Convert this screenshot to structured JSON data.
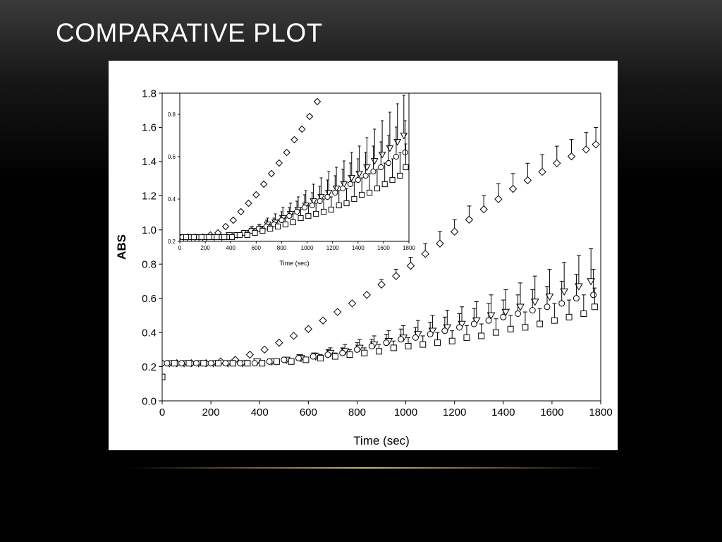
{
  "slide": {
    "title": "COMPARATIVE PLOT",
    "accent_color": "#d4b46a",
    "background": "#000000"
  },
  "chart_data": [
    {
      "type": "scatter",
      "title": "",
      "xlabel": "Time (sec)",
      "ylabel": "ABS",
      "xlim": [
        0,
        1800
      ],
      "ylim": [
        0,
        1.8
      ],
      "x_ticks": [
        "0",
        "200",
        "400",
        "600",
        "800",
        "1000",
        "1200",
        "1400",
        "1600",
        "1800"
      ],
      "y_ticks": [
        "0.0",
        "0.2",
        "0.4",
        "0.6",
        "0.8",
        "1.0",
        "1.2",
        "1.4",
        "1.6",
        "1.8"
      ],
      "grid": false,
      "series": [
        {
          "marker": "diamond",
          "x": [
            0,
            60,
            120,
            180,
            240,
            300,
            360,
            420,
            480,
            540,
            600,
            660,
            720,
            780,
            840,
            900,
            960,
            1020,
            1080,
            1140,
            1200,
            1260,
            1320,
            1380,
            1440,
            1500,
            1560,
            1620,
            1680,
            1740,
            1780
          ],
          "y": [
            0.22,
            0.22,
            0.22,
            0.22,
            0.23,
            0.24,
            0.27,
            0.3,
            0.34,
            0.38,
            0.42,
            0.47,
            0.52,
            0.57,
            0.62,
            0.68,
            0.73,
            0.79,
            0.86,
            0.92,
            0.99,
            1.06,
            1.12,
            1.18,
            1.24,
            1.29,
            1.34,
            1.39,
            1.43,
            1.47,
            1.5
          ],
          "err": [
            0,
            0,
            0,
            0,
            0,
            0,
            0,
            0,
            0,
            0,
            0,
            0,
            0,
            0,
            0,
            0.03,
            0.04,
            0.05,
            0.06,
            0.07,
            0.07,
            0.08,
            0.08,
            0.09,
            0.09,
            0.1,
            0.1,
            0.1,
            0.1,
            0.1,
            0.1
          ]
        },
        {
          "marker": "triangle-down",
          "x": [
            30,
            90,
            150,
            210,
            270,
            330,
            390,
            450,
            510,
            570,
            630,
            690,
            750,
            810,
            870,
            930,
            990,
            1050,
            1110,
            1170,
            1230,
            1290,
            1350,
            1410,
            1470,
            1530,
            1590,
            1650,
            1710,
            1760
          ],
          "y": [
            0.22,
            0.22,
            0.22,
            0.22,
            0.22,
            0.22,
            0.23,
            0.23,
            0.24,
            0.25,
            0.26,
            0.28,
            0.29,
            0.31,
            0.33,
            0.35,
            0.37,
            0.39,
            0.41,
            0.43,
            0.45,
            0.47,
            0.5,
            0.52,
            0.55,
            0.58,
            0.61,
            0.64,
            0.67,
            0.7
          ],
          "err": [
            0,
            0,
            0,
            0,
            0,
            0,
            0,
            0.01,
            0.01,
            0.02,
            0.02,
            0.03,
            0.04,
            0.05,
            0.05,
            0.06,
            0.07,
            0.08,
            0.09,
            0.1,
            0.1,
            0.11,
            0.12,
            0.13,
            0.14,
            0.15,
            0.16,
            0.17,
            0.18,
            0.19
          ]
        },
        {
          "marker": "circle",
          "x": [
            20,
            80,
            140,
            200,
            260,
            320,
            380,
            440,
            500,
            560,
            620,
            680,
            740,
            800,
            860,
            920,
            980,
            1040,
            1100,
            1160,
            1220,
            1280,
            1340,
            1400,
            1460,
            1520,
            1580,
            1640,
            1700,
            1770
          ],
          "y": [
            0.22,
            0.22,
            0.22,
            0.22,
            0.22,
            0.22,
            0.22,
            0.23,
            0.24,
            0.25,
            0.26,
            0.27,
            0.28,
            0.3,
            0.32,
            0.34,
            0.36,
            0.37,
            0.39,
            0.41,
            0.43,
            0.45,
            0.47,
            0.49,
            0.51,
            0.53,
            0.55,
            0.57,
            0.6,
            0.62
          ],
          "err": [
            0,
            0,
            0,
            0,
            0,
            0,
            0,
            0.01,
            0.01,
            0.02,
            0.02,
            0.03,
            0.03,
            0.04,
            0.04,
            0.05,
            0.06,
            0.06,
            0.07,
            0.08,
            0.08,
            0.09,
            0.1,
            0.1,
            0.11,
            0.12,
            0.12,
            0.13,
            0.14,
            0.15
          ]
        },
        {
          "marker": "square",
          "x": [
            0,
            50,
            110,
            170,
            230,
            290,
            350,
            410,
            470,
            530,
            590,
            650,
            710,
            770,
            830,
            890,
            950,
            1010,
            1070,
            1130,
            1190,
            1250,
            1310,
            1370,
            1430,
            1490,
            1550,
            1610,
            1670,
            1730,
            1775
          ],
          "y": [
            0.14,
            0.22,
            0.22,
            0.22,
            0.22,
            0.22,
            0.22,
            0.22,
            0.23,
            0.23,
            0.24,
            0.25,
            0.26,
            0.27,
            0.28,
            0.29,
            0.31,
            0.32,
            0.33,
            0.34,
            0.35,
            0.37,
            0.38,
            0.4,
            0.42,
            0.43,
            0.45,
            0.47,
            0.49,
            0.51,
            0.55
          ],
          "err": [
            0,
            0,
            0,
            0,
            0,
            0,
            0,
            0,
            0.01,
            0.01,
            0.01,
            0.02,
            0.02,
            0.03,
            0.03,
            0.04,
            0.04,
            0.05,
            0.05,
            0.06,
            0.06,
            0.07,
            0.07,
            0.08,
            0.08,
            0.09,
            0.09,
            0.1,
            0.1,
            0.11,
            0.11
          ]
        }
      ]
    },
    {
      "type": "scatter",
      "title": "",
      "xlabel": "Time (sec)",
      "ylabel": "",
      "xlim": [
        0,
        1800
      ],
      "ylim": [
        0.2,
        0.9
      ],
      "x_ticks": [
        "0",
        "200",
        "400",
        "600",
        "800",
        "1000",
        "1200",
        "1400",
        "1600",
        "1800"
      ],
      "y_ticks": [
        "0.2",
        "0.4",
        "0.6",
        "0.8"
      ],
      "grid": false,
      "series": [
        {
          "marker": "diamond",
          "x": [
            0,
            60,
            120,
            180,
            240,
            300,
            360,
            420,
            480,
            540,
            600,
            660,
            720,
            780,
            840,
            900,
            960,
            1020,
            1080
          ],
          "y": [
            0.22,
            0.22,
            0.22,
            0.22,
            0.23,
            0.24,
            0.27,
            0.3,
            0.34,
            0.38,
            0.42,
            0.47,
            0.52,
            0.57,
            0.62,
            0.68,
            0.73,
            0.79,
            0.86
          ],
          "err": [
            0,
            0,
            0,
            0,
            0,
            0,
            0,
            0,
            0,
            0,
            0,
            0,
            0,
            0,
            0,
            0,
            0,
            0,
            0
          ]
        },
        {
          "marker": "triangle-down",
          "x": [
            30,
            90,
            150,
            210,
            270,
            330,
            390,
            450,
            510,
            570,
            630,
            690,
            750,
            810,
            870,
            930,
            990,
            1050,
            1110,
            1170,
            1230,
            1290,
            1350,
            1410,
            1470,
            1530,
            1590,
            1650,
            1710,
            1760
          ],
          "y": [
            0.22,
            0.22,
            0.22,
            0.22,
            0.22,
            0.22,
            0.23,
            0.23,
            0.24,
            0.25,
            0.26,
            0.28,
            0.29,
            0.31,
            0.33,
            0.35,
            0.37,
            0.39,
            0.41,
            0.43,
            0.45,
            0.47,
            0.5,
            0.52,
            0.55,
            0.58,
            0.61,
            0.64,
            0.67,
            0.7
          ],
          "err": [
            0,
            0,
            0,
            0,
            0,
            0,
            0,
            0.01,
            0.01,
            0.02,
            0.02,
            0.03,
            0.04,
            0.05,
            0.05,
            0.06,
            0.07,
            0.08,
            0.09,
            0.1,
            0.1,
            0.11,
            0.12,
            0.13,
            0.14,
            0.15,
            0.16,
            0.17,
            0.18,
            0.19
          ]
        },
        {
          "marker": "circle",
          "x": [
            20,
            80,
            140,
            200,
            260,
            320,
            380,
            440,
            500,
            560,
            620,
            680,
            740,
            800,
            860,
            920,
            980,
            1040,
            1100,
            1160,
            1220,
            1280,
            1340,
            1400,
            1460,
            1520,
            1580,
            1640,
            1700,
            1770
          ],
          "y": [
            0.22,
            0.22,
            0.22,
            0.22,
            0.22,
            0.22,
            0.22,
            0.23,
            0.24,
            0.25,
            0.26,
            0.27,
            0.28,
            0.3,
            0.32,
            0.34,
            0.36,
            0.37,
            0.39,
            0.41,
            0.43,
            0.45,
            0.47,
            0.49,
            0.51,
            0.53,
            0.55,
            0.57,
            0.6,
            0.62
          ],
          "err": [
            0,
            0,
            0,
            0,
            0,
            0,
            0,
            0.01,
            0.01,
            0.02,
            0.02,
            0.03,
            0.03,
            0.04,
            0.04,
            0.05,
            0.06,
            0.06,
            0.07,
            0.08,
            0.08,
            0.09,
            0.1,
            0.1,
            0.11,
            0.12,
            0.12,
            0.13,
            0.14,
            0.15
          ]
        },
        {
          "marker": "square",
          "x": [
            50,
            110,
            170,
            230,
            290,
            350,
            410,
            470,
            530,
            590,
            650,
            710,
            770,
            830,
            890,
            950,
            1010,
            1070,
            1130,
            1190,
            1250,
            1310,
            1370,
            1430,
            1490,
            1550,
            1610,
            1670,
            1730,
            1775
          ],
          "y": [
            0.22,
            0.22,
            0.22,
            0.22,
            0.22,
            0.22,
            0.22,
            0.23,
            0.23,
            0.24,
            0.25,
            0.26,
            0.27,
            0.28,
            0.29,
            0.31,
            0.32,
            0.33,
            0.34,
            0.35,
            0.37,
            0.38,
            0.4,
            0.42,
            0.43,
            0.45,
            0.47,
            0.49,
            0.51,
            0.55
          ],
          "err": [
            0,
            0,
            0,
            0,
            0,
            0,
            0,
            0.01,
            0.01,
            0.01,
            0.02,
            0.02,
            0.03,
            0.03,
            0.04,
            0.04,
            0.05,
            0.05,
            0.06,
            0.06,
            0.07,
            0.07,
            0.08,
            0.08,
            0.09,
            0.09,
            0.1,
            0.1,
            0.11,
            0.11
          ]
        }
      ]
    }
  ]
}
